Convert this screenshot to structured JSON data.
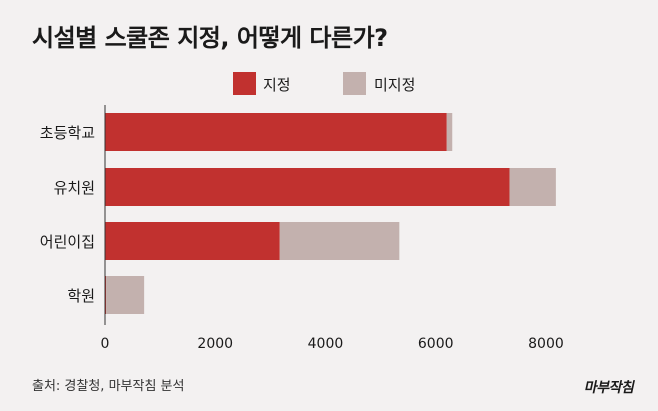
{
  "title": "시설별 스쿨존 지정, 어떻게 다른가?",
  "source": "출처: 경찰청, 마부작침 분석",
  "logo_text": "마부작침",
  "colors": {
    "designated": "#c1312f",
    "undesignated": "#c3b1ae",
    "background": "#f3f1f1"
  },
  "chart_data": {
    "type": "bar",
    "orientation": "horizontal",
    "stacked": true,
    "categories": [
      "초등학교",
      "유치원",
      "어린이집",
      "학원"
    ],
    "series": [
      {
        "name": "지정",
        "values": [
          6200,
          7340,
          3170,
          20
        ],
        "color": "#c1312f"
      },
      {
        "name": "미지정",
        "values": [
          100,
          840,
          2170,
          690
        ],
        "color": "#c3b1ae"
      }
    ],
    "xlim": [
      0,
      8400
    ],
    "xticks": [
      "0",
      "2000",
      "4000",
      "6000",
      "8000"
    ],
    "xtick_values": [
      0,
      2000,
      4000,
      6000,
      8000
    ],
    "legend_position": "top-center",
    "grid": false
  }
}
